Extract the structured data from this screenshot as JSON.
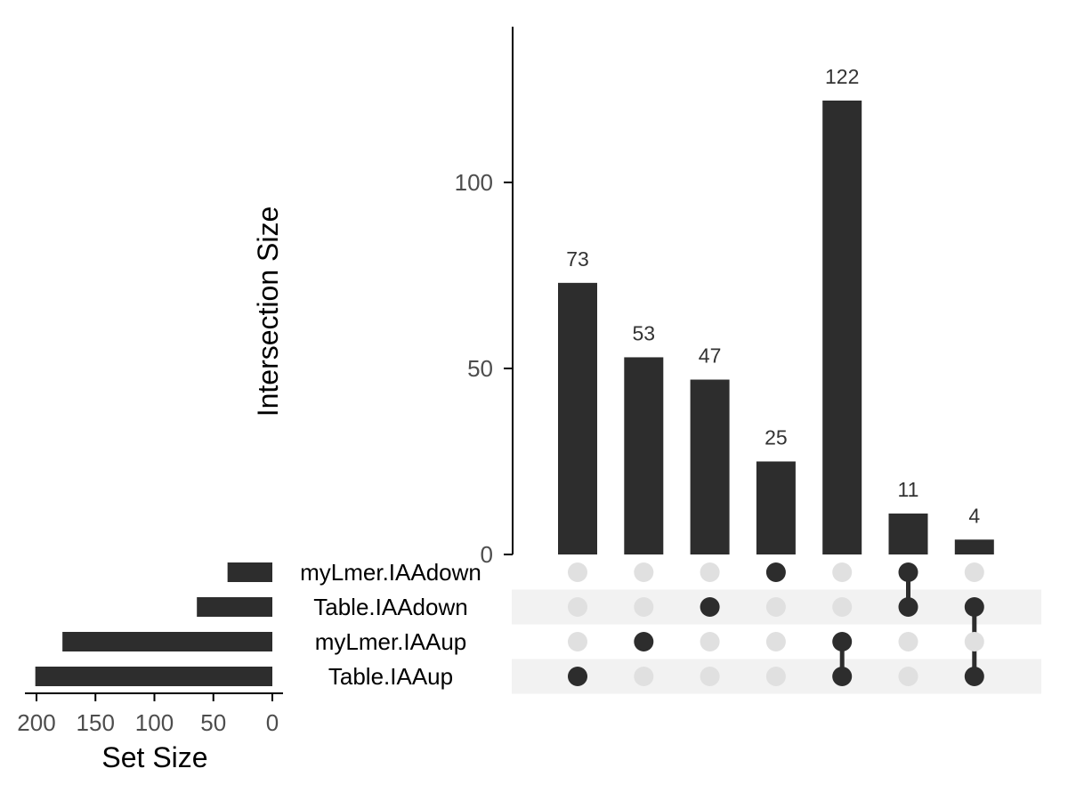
{
  "chart_data": {
    "type": "bar",
    "subtype": "upset",
    "intersection_axis": {
      "title": "Intersection Size",
      "ylim": [
        0,
        140
      ],
      "ticks": [
        0,
        50,
        100
      ],
      "tick_labels": [
        "0",
        "50",
        "100"
      ]
    },
    "set_size_axis": {
      "title": "Set Size",
      "xlim": [
        210,
        0
      ],
      "ticks": [
        200,
        150,
        100,
        50,
        0
      ],
      "tick_labels": [
        "200",
        "150",
        "100",
        "50",
        "0"
      ]
    },
    "sets": [
      {
        "name": "myLmer.IAAdown",
        "size": 38
      },
      {
        "name": "Table.IAAdown",
        "size": 64
      },
      {
        "name": "myLmer.IAAup",
        "size": 178
      },
      {
        "name": "Table.IAAup",
        "size": 201
      }
    ],
    "intersections": [
      {
        "value": 73,
        "label": "73",
        "members": [
          "Table.IAAup"
        ]
      },
      {
        "value": 53,
        "label": "53",
        "members": [
          "myLmer.IAAup"
        ]
      },
      {
        "value": 47,
        "label": "47",
        "members": [
          "Table.IAAdown"
        ]
      },
      {
        "value": 25,
        "label": "25",
        "members": [
          "myLmer.IAAdown"
        ]
      },
      {
        "value": 122,
        "label": "122",
        "members": [
          "myLmer.IAAup",
          "Table.IAAup"
        ]
      },
      {
        "value": 11,
        "label": "11",
        "members": [
          "myLmer.IAAdown",
          "Table.IAAdown"
        ]
      },
      {
        "value": 4,
        "label": "4",
        "members": [
          "Table.IAAdown",
          "Table.IAAup"
        ]
      }
    ],
    "colors": {
      "bar": "#2d2d2d",
      "dot_active": "#2d2d2d",
      "dot_inactive": "#e0e0e0",
      "stripe": "#f2f2f2",
      "axis": "#000000"
    },
    "grid": false
  }
}
